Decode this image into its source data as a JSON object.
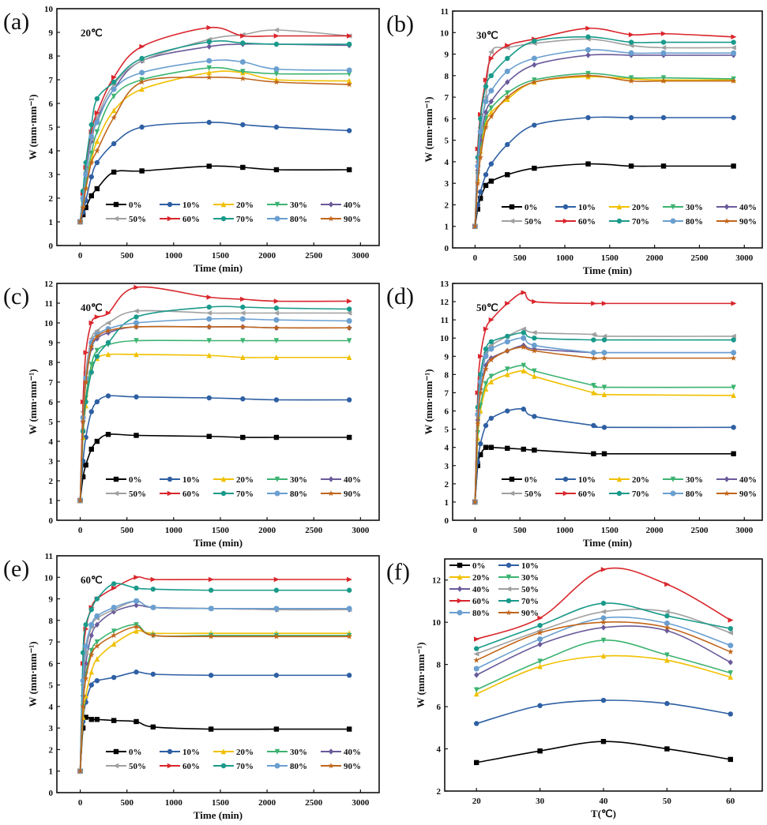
{
  "series_names": [
    "0%",
    "10%",
    "20%",
    "30%",
    "40%",
    "50%",
    "60%",
    "70%",
    "80%",
    "90%"
  ],
  "series_colors": [
    "#000000",
    "#2e5fa3",
    "#f0c000",
    "#3cb371",
    "#6a5a9a",
    "#a0a0a0",
    "#d9262c",
    "#1a9a8a",
    "#6a9fd0",
    "#c0651a"
  ],
  "series_markers": [
    "square",
    "circle",
    "tri-up",
    "tri-down",
    "diamond",
    "tri-left",
    "tri-right",
    "circle",
    "hexagon",
    "star"
  ],
  "chart_data": [
    {
      "panel": "(a)",
      "type": "line",
      "annotation": "20℃",
      "xlabel": "Time (min)",
      "ylabel": "W (mm·mm⁻¹)",
      "xlim": [
        -250,
        3200
      ],
      "ylim": [
        0,
        10
      ],
      "xticks": [
        0,
        500,
        1000,
        1500,
        2000,
        2500,
        3000
      ],
      "yticks": [
        0,
        1,
        2,
        3,
        4,
        5,
        6,
        7,
        8,
        9,
        10
      ],
      "legend": "bottom-right",
      "x": [
        0,
        30,
        60,
        120,
        180,
        360,
        660,
        1380,
        1740,
        2100,
        2880
      ],
      "series": [
        {
          "name": "0%",
          "values": [
            1,
            1.3,
            1.6,
            2.1,
            2.4,
            3.1,
            3.15,
            3.35,
            3.3,
            3.2,
            3.2
          ]
        },
        {
          "name": "10%",
          "values": [
            1,
            1.4,
            1.9,
            2.9,
            3.5,
            4.3,
            5.0,
            5.2,
            5.1,
            5.0,
            4.85
          ]
        },
        {
          "name": "20%",
          "values": [
            1,
            1.7,
            2.5,
            3.6,
            4.4,
            5.7,
            6.6,
            7.3,
            7.3,
            7.0,
            6.95
          ]
        },
        {
          "name": "30%",
          "values": [
            1,
            1.8,
            2.7,
            3.9,
            4.8,
            6.3,
            7.0,
            7.5,
            7.35,
            7.25,
            7.25
          ]
        },
        {
          "name": "40%",
          "values": [
            1,
            2.0,
            3.0,
            4.4,
            5.3,
            6.6,
            7.8,
            8.4,
            8.5,
            8.5,
            8.45
          ]
        },
        {
          "name": "50%",
          "values": [
            1,
            2.0,
            3.1,
            4.5,
            5.4,
            6.8,
            7.8,
            8.7,
            8.9,
            9.1,
            8.85
          ]
        },
        {
          "name": "60%",
          "values": [
            1,
            2.2,
            3.3,
            4.8,
            5.6,
            7.1,
            8.4,
            9.2,
            8.85,
            8.85,
            8.85
          ]
        },
        {
          "name": "70%",
          "values": [
            1,
            2.3,
            3.5,
            5.1,
            6.2,
            6.9,
            7.9,
            8.6,
            8.55,
            8.5,
            8.5
          ]
        },
        {
          "name": "80%",
          "values": [
            1,
            2.0,
            3.0,
            4.6,
            5.2,
            6.6,
            7.3,
            7.8,
            7.75,
            7.45,
            7.4
          ]
        },
        {
          "name": "90%",
          "values": [
            1,
            1.6,
            2.4,
            3.5,
            4.0,
            5.4,
            6.9,
            7.1,
            7.05,
            6.9,
            6.8
          ]
        }
      ]
    },
    {
      "panel": "(b)",
      "type": "line",
      "annotation": "30℃",
      "xlabel": "Time (min)",
      "ylabel": "W (mm·mm⁻¹)",
      "xlim": [
        -250,
        3200
      ],
      "ylim": [
        0,
        11
      ],
      "xticks": [
        0,
        500,
        1000,
        1500,
        2000,
        2500,
        3000
      ],
      "yticks": [
        0,
        1,
        2,
        3,
        4,
        5,
        6,
        7,
        8,
        9,
        10,
        11
      ],
      "legend": "bottom-right",
      "x": [
        0,
        30,
        60,
        120,
        180,
        360,
        660,
        1260,
        1740,
        2100,
        2880
      ],
      "series": [
        {
          "name": "0%",
          "values": [
            1,
            1.8,
            2.3,
            2.9,
            3.1,
            3.4,
            3.7,
            3.9,
            3.8,
            3.8,
            3.8
          ]
        },
        {
          "name": "10%",
          "values": [
            1,
            2.0,
            2.6,
            3.4,
            3.9,
            4.8,
            5.7,
            6.05,
            6.05,
            6.05,
            6.05
          ]
        },
        {
          "name": "20%",
          "values": [
            1,
            3.2,
            4.5,
            5.8,
            6.3,
            6.9,
            7.7,
            7.95,
            7.85,
            7.8,
            7.8
          ]
        },
        {
          "name": "30%",
          "values": [
            1,
            3.4,
            4.8,
            6.0,
            6.5,
            7.2,
            7.8,
            8.1,
            7.9,
            7.9,
            7.85
          ]
        },
        {
          "name": "40%",
          "values": [
            1,
            3.6,
            5.0,
            6.3,
            6.8,
            7.7,
            8.5,
            8.95,
            8.95,
            8.95,
            8.95
          ]
        },
        {
          "name": "50%",
          "values": [
            1,
            4.0,
            5.6,
            7.0,
            9.1,
            9.3,
            9.5,
            9.7,
            9.4,
            9.3,
            9.3
          ]
        },
        {
          "name": "60%",
          "values": [
            1,
            4.6,
            6.2,
            7.8,
            8.8,
            9.4,
            9.7,
            10.2,
            9.9,
            9.95,
            9.8
          ]
        },
        {
          "name": "70%",
          "values": [
            1,
            4.2,
            6.0,
            7.5,
            8.0,
            8.8,
            9.6,
            9.8,
            9.55,
            9.55,
            9.55
          ]
        },
        {
          "name": "80%",
          "values": [
            1,
            3.8,
            5.4,
            6.8,
            7.3,
            8.2,
            8.8,
            9.2,
            9.05,
            9.05,
            9.05
          ]
        },
        {
          "name": "90%",
          "values": [
            1,
            3.0,
            4.2,
            5.6,
            6.1,
            7.0,
            7.7,
            8.0,
            7.75,
            7.75,
            7.75
          ]
        }
      ]
    },
    {
      "panel": "(c)",
      "type": "line",
      "annotation": "40℃",
      "xlabel": "Time (min)",
      "ylabel": "W (mm·mm⁻¹)",
      "xlim": [
        -250,
        3200
      ],
      "ylim": [
        0,
        12
      ],
      "xticks": [
        0,
        500,
        1000,
        1500,
        2000,
        2500,
        3000
      ],
      "yticks": [
        0,
        1,
        2,
        3,
        4,
        5,
        6,
        7,
        8,
        9,
        10,
        11,
        12
      ],
      "legend": "bottom-right",
      "x": [
        0,
        30,
        60,
        120,
        180,
        300,
        600,
        1380,
        1740,
        2100,
        2880
      ],
      "series": [
        {
          "name": "0%",
          "values": [
            1,
            2.2,
            2.8,
            3.6,
            4.0,
            4.35,
            4.3,
            4.25,
            4.2,
            4.2,
            4.2
          ]
        },
        {
          "name": "10%",
          "values": [
            1,
            3.0,
            4.2,
            5.5,
            6.0,
            6.3,
            6.25,
            6.2,
            6.15,
            6.1,
            6.1
          ]
        },
        {
          "name": "20%",
          "values": [
            1,
            4.2,
            5.8,
            7.6,
            8.2,
            8.4,
            8.4,
            8.35,
            8.25,
            8.25,
            8.25
          ]
        },
        {
          "name": "30%",
          "values": [
            1,
            4.5,
            6.2,
            7.9,
            8.6,
            8.9,
            9.1,
            9.1,
            9.1,
            9.1,
            9.1
          ]
        },
        {
          "name": "40%",
          "values": [
            1,
            5.0,
            7.0,
            8.7,
            9.2,
            9.5,
            9.8,
            9.8,
            9.8,
            9.75,
            9.75
          ]
        },
        {
          "name": "50%",
          "values": [
            1,
            5.5,
            7.5,
            9.2,
            9.6,
            10.0,
            10.6,
            10.5,
            10.5,
            10.5,
            10.5
          ]
        },
        {
          "name": "60%",
          "values": [
            1,
            6.0,
            8.5,
            10.0,
            10.3,
            10.5,
            11.8,
            11.3,
            11.2,
            11.1,
            11.1
          ]
        },
        {
          "name": "70%",
          "values": [
            1,
            4.5,
            6.0,
            7.5,
            8.3,
            9.0,
            10.3,
            10.8,
            10.8,
            10.75,
            10.7
          ]
        },
        {
          "name": "80%",
          "values": [
            1,
            5.2,
            7.2,
            9.0,
            9.4,
            9.7,
            10.0,
            10.2,
            10.2,
            10.15,
            10.1
          ]
        },
        {
          "name": "90%",
          "values": [
            1,
            5.0,
            7.0,
            8.8,
            9.3,
            9.6,
            9.8,
            9.8,
            9.8,
            9.75,
            9.75
          ]
        }
      ]
    },
    {
      "panel": "(d)",
      "type": "line",
      "annotation": "50℃",
      "xlabel": "Time (min)",
      "ylabel": "W (mm·mm⁻¹)",
      "xlim": [
        -250,
        3200
      ],
      "ylim": [
        0,
        13
      ],
      "xticks": [
        0,
        500,
        1000,
        1500,
        2000,
        2500,
        3000
      ],
      "yticks": [
        0,
        1,
        2,
        3,
        4,
        5,
        6,
        7,
        8,
        9,
        10,
        11,
        12,
        13
      ],
      "legend": "bottom-right",
      "x": [
        0,
        30,
        60,
        120,
        180,
        360,
        540,
        660,
        1320,
        1440,
        2880
      ],
      "series": [
        {
          "name": "0%",
          "values": [
            1,
            3.0,
            3.6,
            4.0,
            4.0,
            3.95,
            3.9,
            3.85,
            3.65,
            3.65,
            3.65
          ]
        },
        {
          "name": "10%",
          "values": [
            1,
            3.2,
            4.2,
            5.2,
            5.6,
            6.0,
            6.1,
            5.7,
            5.2,
            5.1,
            5.1
          ]
        },
        {
          "name": "20%",
          "values": [
            1,
            4.5,
            6.0,
            7.2,
            7.6,
            8.0,
            8.2,
            7.9,
            7.0,
            6.9,
            6.85
          ]
        },
        {
          "name": "30%",
          "values": [
            1,
            4.8,
            6.3,
            7.5,
            7.9,
            8.3,
            8.5,
            8.2,
            7.4,
            7.3,
            7.3
          ]
        },
        {
          "name": "40%",
          "values": [
            1,
            5.5,
            7.2,
            8.5,
            8.9,
            9.3,
            9.6,
            9.4,
            9.2,
            9.2,
            9.2
          ]
        },
        {
          "name": "50%",
          "values": [
            1,
            6.0,
            7.8,
            9.2,
            9.6,
            10.1,
            10.5,
            10.3,
            10.2,
            10.1,
            10.1
          ]
        },
        {
          "name": "60%",
          "values": [
            1,
            7.0,
            9.0,
            10.5,
            11.0,
            11.9,
            12.5,
            12.0,
            11.9,
            11.9,
            11.9
          ]
        },
        {
          "name": "70%",
          "values": [
            1,
            6.2,
            8.0,
            9.4,
            9.8,
            10.1,
            10.3,
            10.0,
            9.9,
            9.9,
            9.9
          ]
        },
        {
          "name": "80%",
          "values": [
            1,
            5.8,
            7.6,
            9.0,
            9.4,
            9.8,
            10.0,
            9.6,
            9.2,
            9.2,
            9.2
          ]
        },
        {
          "name": "90%",
          "values": [
            1,
            5.3,
            7.0,
            8.3,
            8.8,
            9.3,
            9.5,
            9.3,
            8.9,
            8.9,
            8.9
          ]
        }
      ]
    },
    {
      "panel": "(e)",
      "type": "line",
      "annotation": "60℃",
      "xlabel": "Time (min)",
      "ylabel": "W (mm·mm⁻¹)",
      "xlim": [
        -250,
        3200
      ],
      "ylim": [
        0,
        11
      ],
      "xticks": [
        0,
        500,
        1000,
        1500,
        2000,
        2500,
        3000
      ],
      "yticks": [
        0,
        1,
        2,
        3,
        4,
        5,
        6,
        7,
        8,
        9,
        10,
        11
      ],
      "legend": "bottom-right",
      "x": [
        0,
        30,
        60,
        120,
        180,
        360,
        600,
        780,
        1400,
        2100,
        2880
      ],
      "series": [
        {
          "name": "0%",
          "values": [
            1,
            3.0,
            3.5,
            3.4,
            3.4,
            3.35,
            3.3,
            3.05,
            2.95,
            2.95,
            2.95
          ]
        },
        {
          "name": "10%",
          "values": [
            1,
            3.3,
            4.2,
            5.0,
            5.2,
            5.35,
            5.6,
            5.5,
            5.45,
            5.45,
            5.45
          ]
        },
        {
          "name": "20%",
          "values": [
            1,
            3.5,
            4.5,
            5.6,
            6.2,
            6.9,
            7.5,
            7.4,
            7.4,
            7.4,
            7.4
          ]
        },
        {
          "name": "30%",
          "values": [
            1,
            4.0,
            5.5,
            6.6,
            7.0,
            7.5,
            7.8,
            7.3,
            7.3,
            7.3,
            7.3
          ]
        },
        {
          "name": "40%",
          "values": [
            1,
            4.5,
            6.0,
            7.3,
            7.8,
            8.4,
            8.7,
            8.6,
            8.55,
            8.5,
            8.5
          ]
        },
        {
          "name": "50%",
          "values": [
            1,
            5.0,
            6.5,
            7.7,
            8.1,
            8.5,
            8.9,
            8.6,
            8.55,
            8.5,
            8.5
          ]
        },
        {
          "name": "60%",
          "values": [
            1,
            6.0,
            7.6,
            8.6,
            9.0,
            9.5,
            10.0,
            9.9,
            9.9,
            9.9,
            9.9
          ]
        },
        {
          "name": "70%",
          "values": [
            1,
            6.5,
            7.8,
            8.5,
            9.0,
            9.7,
            9.5,
            9.45,
            9.4,
            9.4,
            9.4
          ]
        },
        {
          "name": "80%",
          "values": [
            1,
            5.2,
            6.8,
            7.8,
            8.2,
            8.6,
            8.9,
            8.6,
            8.55,
            8.55,
            8.55
          ]
        },
        {
          "name": "90%",
          "values": [
            1,
            4.0,
            5.3,
            6.4,
            6.8,
            7.3,
            7.7,
            7.3,
            7.25,
            7.25,
            7.25
          ]
        }
      ]
    },
    {
      "panel": "(f)",
      "type": "line",
      "annotation": "",
      "xlabel": "T(℃)",
      "ylabel": "W (mm·mm⁻¹)",
      "xlim": [
        15,
        65
      ],
      "ylim": [
        2,
        13
      ],
      "xticks": [
        20,
        30,
        40,
        50,
        60
      ],
      "yticks": [
        2,
        4,
        6,
        8,
        10,
        12
      ],
      "legend": "top-left",
      "x": [
        20,
        30,
        40,
        50,
        60
      ],
      "series": [
        {
          "name": "0%",
          "values": [
            3.35,
            3.9,
            4.35,
            4.0,
            3.5
          ]
        },
        {
          "name": "10%",
          "values": [
            5.2,
            6.05,
            6.3,
            6.15,
            5.65
          ]
        },
        {
          "name": "20%",
          "values": [
            6.6,
            7.9,
            8.4,
            8.2,
            7.4
          ]
        },
        {
          "name": "30%",
          "values": [
            6.8,
            8.15,
            9.15,
            8.45,
            7.6
          ]
        },
        {
          "name": "40%",
          "values": [
            7.5,
            8.95,
            9.75,
            9.6,
            8.1
          ]
        },
        {
          "name": "50%",
          "values": [
            8.5,
            9.6,
            10.5,
            10.5,
            9.5
          ]
        },
        {
          "name": "60%",
          "values": [
            9.2,
            10.2,
            12.5,
            11.8,
            10.1
          ]
        },
        {
          "name": "70%",
          "values": [
            8.75,
            9.85,
            10.9,
            10.3,
            9.7
          ]
        },
        {
          "name": "80%",
          "values": [
            7.8,
            9.2,
            10.2,
            9.95,
            8.9
          ]
        },
        {
          "name": "90%",
          "values": [
            8.2,
            9.5,
            10.0,
            9.75,
            8.6
          ]
        }
      ]
    }
  ]
}
